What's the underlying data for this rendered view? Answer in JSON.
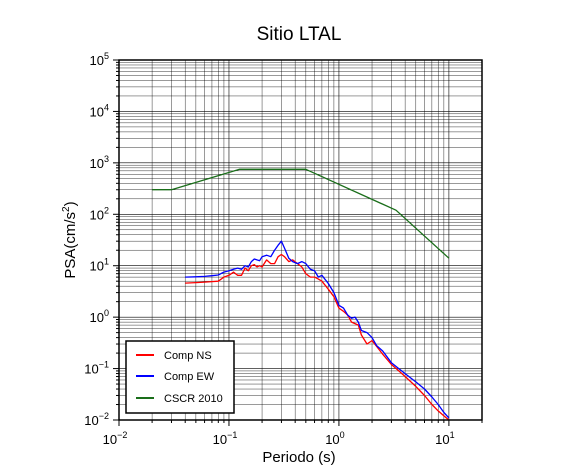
{
  "chart_data": {
    "type": "line",
    "title": "Sitio LTAL",
    "xlabel": "Periodo (s)",
    "ylabel": "PSA(cm/s",
    "ylabel_sup": "2",
    "ylabel_close": ")",
    "x_scale": "log",
    "y_scale": "log",
    "xlim": [
      0.01,
      20
    ],
    "ylim": [
      0.01,
      100000
    ],
    "grid": true,
    "legend_position": "bottom-left",
    "x_ticks": [
      {
        "value": 0.01,
        "base": "10",
        "exp": "−2"
      },
      {
        "value": 0.1,
        "base": "10",
        "exp": "−1"
      },
      {
        "value": 1,
        "base": "10",
        "exp": "0"
      },
      {
        "value": 10,
        "base": "10",
        "exp": "1"
      }
    ],
    "y_ticks": [
      {
        "value": 0.01,
        "base": "10",
        "exp": "−2"
      },
      {
        "value": 0.1,
        "base": "10",
        "exp": "−1"
      },
      {
        "value": 1,
        "base": "10",
        "exp": "0"
      },
      {
        "value": 10,
        "base": "10",
        "exp": "1"
      },
      {
        "value": 100,
        "base": "10",
        "exp": "2"
      },
      {
        "value": 1000,
        "base": "10",
        "exp": "3"
      },
      {
        "value": 10000,
        "base": "10",
        "exp": "4"
      },
      {
        "value": 100000,
        "base": "10",
        "exp": "5"
      }
    ],
    "series": [
      {
        "name": "Comp NS",
        "color": "#ff0000",
        "x": [
          0.04,
          0.05,
          0.06,
          0.07,
          0.08,
          0.09,
          0.1,
          0.11,
          0.12,
          0.13,
          0.14,
          0.15,
          0.16,
          0.17,
          0.18,
          0.19,
          0.2,
          0.22,
          0.24,
          0.26,
          0.28,
          0.3,
          0.32,
          0.35,
          0.38,
          0.42,
          0.46,
          0.5,
          0.55,
          0.6,
          0.65,
          0.7,
          0.8,
          0.9,
          1.0,
          1.1,
          1.2,
          1.3,
          1.4,
          1.5,
          1.6,
          1.8,
          2.0,
          2.2,
          2.5,
          3.0,
          3.5,
          4.0,
          5.0,
          6.0,
          7.0,
          8.0,
          9.0,
          10.0
        ],
        "values": [
          4.6,
          4.7,
          4.8,
          4.9,
          5.0,
          6.0,
          6.5,
          7.5,
          6.5,
          6.5,
          9.0,
          8.0,
          10.0,
          10.5,
          9.5,
          10.0,
          9.5,
          13.0,
          11.0,
          11.0,
          15.0,
          16.5,
          15.0,
          12.0,
          13.0,
          11.0,
          9.5,
          7.0,
          6.0,
          6.0,
          5.5,
          5.0,
          3.5,
          2.5,
          1.5,
          1.3,
          1.1,
          0.8,
          0.75,
          0.7,
          0.45,
          0.3,
          0.35,
          0.27,
          0.19,
          0.12,
          0.09,
          0.07,
          0.045,
          0.03,
          0.02,
          0.015,
          0.012,
          0.01
        ]
      },
      {
        "name": "Comp EW",
        "color": "#0000ff",
        "x": [
          0.04,
          0.05,
          0.06,
          0.07,
          0.08,
          0.09,
          0.1,
          0.11,
          0.12,
          0.13,
          0.14,
          0.15,
          0.16,
          0.17,
          0.18,
          0.19,
          0.2,
          0.22,
          0.24,
          0.26,
          0.28,
          0.3,
          0.32,
          0.35,
          0.38,
          0.42,
          0.46,
          0.5,
          0.55,
          0.6,
          0.65,
          0.7,
          0.8,
          0.9,
          1.0,
          1.1,
          1.2,
          1.3,
          1.4,
          1.5,
          1.6,
          1.8,
          2.0,
          2.2,
          2.5,
          3.0,
          3.5,
          4.0,
          5.0,
          6.0,
          7.0,
          8.0,
          9.0,
          10.0
        ],
        "values": [
          6.0,
          6.1,
          6.2,
          6.4,
          6.6,
          7.5,
          8.0,
          8.5,
          9.0,
          8.5,
          10.0,
          9.5,
          12.0,
          13.5,
          13.0,
          12.5,
          15.0,
          16.0,
          15.0,
          20.0,
          25.0,
          30.0,
          22.0,
          14.0,
          12.0,
          11.0,
          12.0,
          11.0,
          8.5,
          8.0,
          6.0,
          6.5,
          4.5,
          3.0,
          1.7,
          1.5,
          1.1,
          0.95,
          1.0,
          0.8,
          0.55,
          0.5,
          0.4,
          0.28,
          0.22,
          0.13,
          0.1,
          0.08,
          0.055,
          0.04,
          0.028,
          0.02,
          0.014,
          0.011
        ]
      },
      {
        "name": "CSCR 2010",
        "color": "#1a6e1a",
        "x": [
          0.02,
          0.03,
          0.125,
          0.5,
          3.3,
          10
        ],
        "values": [
          300,
          300,
          750,
          750,
          120,
          14
        ]
      }
    ]
  }
}
